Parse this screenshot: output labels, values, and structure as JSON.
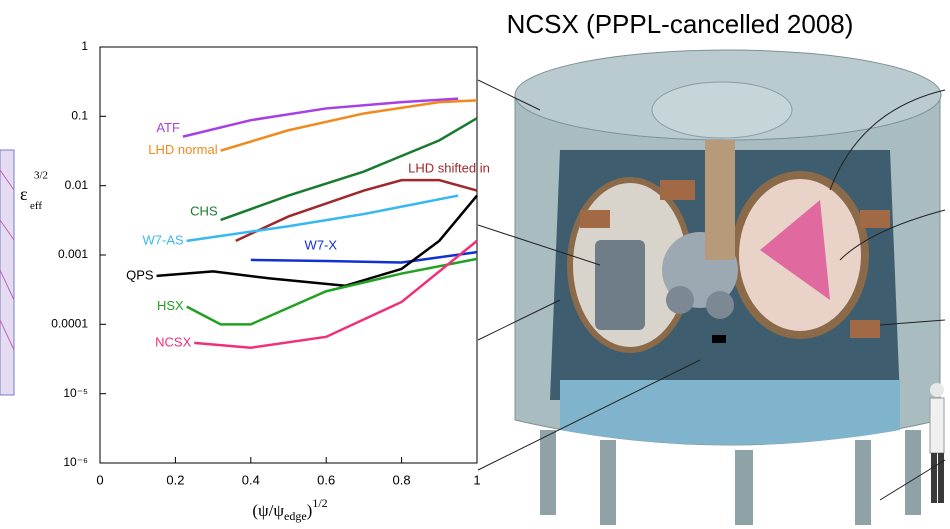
{
  "slide_title": "NCSX (PPPL-cancelled 2008)",
  "chart_data": {
    "type": "line",
    "log_y": true,
    "xlabel": {
      "base": "(ψ/ψ",
      "sub": "edge",
      "close": ")",
      "sup": "1/2"
    },
    "ylabel": {
      "base": "ε",
      "sub": "eff",
      "sup": "3/2"
    },
    "xlim": [
      0,
      1
    ],
    "xticks": [
      0,
      0.2,
      0.4,
      0.6,
      0.8,
      1
    ],
    "ylim": [
      1e-06,
      1
    ],
    "yticks": [
      {
        "value": 1e-06,
        "label": "10⁻⁶"
      },
      {
        "value": 1e-05,
        "label": "10⁻⁵"
      },
      0.0001,
      0.001,
      0.01,
      0.1,
      1
    ],
    "series": [
      {
        "name": "ATF",
        "color": "#a640e6",
        "x": [
          0.22,
          0.4,
          0.6,
          0.8,
          0.95
        ],
        "values": [
          0.051,
          0.088,
          0.13,
          0.16,
          0.18
        ]
      },
      {
        "name": "LHD normal",
        "color": "#f08a1c",
        "x": [
          0.32,
          0.5,
          0.7,
          0.9,
          1.0
        ],
        "values": [
          0.032,
          0.063,
          0.11,
          0.16,
          0.17
        ]
      },
      {
        "name": "LHD shifted in",
        "color": "#a0282a",
        "x": [
          0.36,
          0.5,
          0.7,
          0.8,
          0.9,
          1.0
        ],
        "values": [
          0.0016,
          0.0036,
          0.0085,
          0.012,
          0.012,
          0.0085
        ]
      },
      {
        "name": "CHS",
        "color": "#1a7a30",
        "x": [
          0.32,
          0.5,
          0.7,
          0.9,
          1.0
        ],
        "values": [
          0.0032,
          0.0072,
          0.016,
          0.045,
          0.094
        ]
      },
      {
        "name": "W7-AS",
        "color": "#38b8f0",
        "x": [
          0.23,
          0.5,
          0.7,
          0.95
        ],
        "values": [
          0.0016,
          0.0026,
          0.0039,
          0.0072
        ]
      },
      {
        "name": "W7-X",
        "color": "#1030d0",
        "x": [
          0.4,
          0.6,
          0.8,
          1.0
        ],
        "values": [
          0.00085,
          0.00082,
          0.00078,
          0.0011
        ]
      },
      {
        "name": "QPS",
        "color": "#000000",
        "x": [
          0.15,
          0.3,
          0.45,
          0.65,
          0.8,
          0.9,
          1.0
        ],
        "values": [
          0.0005,
          0.00058,
          0.00046,
          0.00036,
          0.00063,
          0.0016,
          0.0072
        ]
      },
      {
        "name": "HSX",
        "color": "#22a022",
        "x": [
          0.23,
          0.32,
          0.4,
          0.6,
          0.8,
          1.0
        ],
        "values": [
          0.00018,
          0.0001,
          0.0001,
          0.0003,
          0.00054,
          0.00088
        ]
      },
      {
        "name": "NCSX",
        "color": "#f0307a",
        "x": [
          0.25,
          0.4,
          0.6,
          0.8,
          1.0
        ],
        "values": [
          5.4e-05,
          4.6e-05,
          6.6e-05,
          0.00021,
          0.0016
        ]
      }
    ]
  }
}
